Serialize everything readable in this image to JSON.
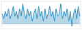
{
  "chart_data": {
    "type": "area",
    "values": [
      6,
      4,
      7,
      5,
      8,
      4,
      6,
      9,
      5,
      7,
      4,
      8,
      5,
      10,
      6,
      4,
      8,
      5,
      7,
      3,
      6,
      8,
      4,
      9,
      5,
      7,
      3,
      8,
      4,
      6,
      9,
      5,
      7,
      3,
      8,
      5,
      6,
      10,
      4,
      7,
      5,
      8,
      3,
      7,
      1,
      6,
      8,
      4,
      9,
      5
    ],
    "baseline": 2.0,
    "color": "#2b8cbe",
    "ylim": [
      0,
      11
    ],
    "tick_labels": false
  }
}
